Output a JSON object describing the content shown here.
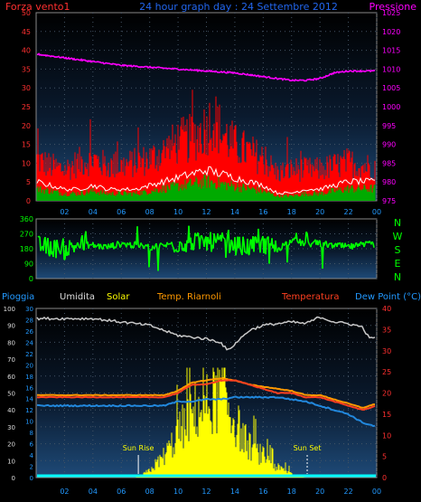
{
  "header": {
    "left": "Forza vento1",
    "center": "24 hour graph day : 24 Settembre 2012",
    "right": "Pressione"
  },
  "colors": {
    "wind_gust": "#ff0000",
    "wind_avg": "#ffffff",
    "wind_green": "#00aa00",
    "pressure": "#ff00ff",
    "direction": "#00ff00",
    "humidity": "#c8c8c8",
    "solar": "#ffff00",
    "temp_indoor": "#ff9900",
    "temperature": "#ff4020",
    "dewpoint": "#2288dd",
    "rain": "#00ffff",
    "left_axis": "#ff3030",
    "bottom_axis": "#2299ff"
  },
  "x_ticks": [
    "02",
    "04",
    "06",
    "08",
    "10",
    "12",
    "14",
    "16",
    "18",
    "20",
    "22",
    "00"
  ],
  "panel1": {
    "left_ticks": [
      "0",
      "5",
      "10",
      "15",
      "20",
      "25",
      "30",
      "35",
      "40",
      "45",
      "50"
    ],
    "right_ticks": [
      "975",
      "980",
      "985",
      "990",
      "995",
      "1000",
      "1005",
      "1010",
      "1015",
      "1020",
      "1025"
    ]
  },
  "panel2": {
    "left_ticks": [
      "0",
      "90",
      "180",
      "270",
      "360"
    ],
    "compass": [
      "N",
      "W",
      "S",
      "E",
      "N"
    ]
  },
  "panel3": {
    "labels": {
      "pioggia": "Pioggia",
      "umidita": "Umidita",
      "solar": "Solar",
      "temp_riarnoli": "Temp. Riarnoli",
      "temperatura": "Temperatura",
      "dewpoint": "Dew Point (°C)"
    },
    "humidity_ticks": [
      "0",
      "10",
      "20",
      "30",
      "40",
      "50",
      "60",
      "70",
      "80",
      "90",
      "100"
    ],
    "rain_ticks": [
      "0",
      "2",
      "4",
      "6",
      "8",
      "10",
      "12",
      "14",
      "16",
      "18",
      "20",
      "22",
      "24",
      "26",
      "28",
      "30"
    ],
    "temp_ticks": [
      "0",
      "5",
      "10",
      "15",
      "20",
      "25",
      "30",
      "35",
      "40"
    ],
    "sun_rise": "Sun Rise",
    "sun_set": "Sun Set"
  },
  "chart_data": [
    {
      "type": "line",
      "title": "24 hour graph day : 24 Settembre 2012",
      "x_range_hours": [
        0,
        24
      ],
      "ylim_left": [
        0,
        50
      ],
      "ylim_right": [
        975,
        1025
      ],
      "series": [
        {
          "name": "Forza vento1",
          "kind": "gust",
          "x": [
            0,
            1,
            2,
            3,
            4,
            5,
            6,
            7,
            8,
            9,
            10,
            11,
            12,
            12.5,
            13,
            14,
            15,
            16,
            17,
            18,
            19,
            20,
            21,
            22,
            23,
            24
          ],
          "values": [
            12,
            10,
            9,
            11,
            12,
            10,
            10,
            11,
            12,
            14,
            17,
            18,
            21,
            24,
            20,
            16,
            14,
            12,
            8,
            9,
            9,
            9,
            10,
            11,
            10,
            10
          ]
        },
        {
          "name": "avg",
          "kind": "average",
          "x": [
            0,
            1,
            2,
            3,
            4,
            5,
            6,
            7,
            8,
            9,
            10,
            11,
            12,
            13,
            14,
            15,
            16,
            17,
            18,
            19,
            20,
            21,
            22,
            23,
            24
          ],
          "values": [
            5,
            4,
            3,
            3,
            4,
            3,
            3,
            3,
            4,
            5,
            6,
            7,
            8,
            7,
            6,
            5,
            4,
            2,
            2,
            3,
            3,
            4,
            5,
            5,
            5
          ]
        },
        {
          "name": "Pressione",
          "axis": "right",
          "x": [
            0,
            2,
            4,
            6,
            8,
            10,
            12,
            14,
            16,
            18,
            19,
            20,
            21,
            22,
            23,
            24
          ],
          "values": [
            1014,
            1013,
            1012,
            1011,
            1010.5,
            1010,
            1009.5,
            1009,
            1008,
            1007,
            1007,
            1007.5,
            1009,
            1009.5,
            1009.5,
            1009.5
          ]
        }
      ]
    },
    {
      "type": "scatter",
      "x_range_hours": [
        0,
        24
      ],
      "ylim": [
        0,
        360
      ],
      "series": [
        {
          "name": "direction",
          "x": [
            0,
            1,
            2,
            3,
            4,
            5,
            6,
            7,
            8,
            9,
            10,
            11,
            12,
            13,
            14,
            15,
            16,
            17,
            18,
            19,
            20,
            21,
            22,
            23,
            24
          ],
          "values": [
            200,
            190,
            170,
            210,
            200,
            190,
            210,
            200,
            190,
            200,
            210,
            220,
            220,
            220,
            200,
            190,
            210,
            180,
            230,
            210,
            210,
            200,
            190,
            200,
            210
          ]
        }
      ]
    },
    {
      "type": "line",
      "x_range_hours": [
        0,
        24
      ],
      "ylim_humidity": [
        0,
        100
      ],
      "ylim_rain": [
        0,
        30
      ],
      "ylim_temp": [
        0,
        40
      ],
      "series": [
        {
          "name": "Umidita",
          "axis": "humidity",
          "x": [
            0,
            2,
            4,
            6,
            8,
            9,
            10,
            11,
            12,
            13,
            13.5,
            14,
            15,
            16,
            17,
            18,
            19,
            20,
            21,
            22,
            23,
            23.5,
            24
          ],
          "values": [
            94,
            94,
            94,
            92,
            90,
            87,
            84,
            83,
            82,
            80,
            75,
            79,
            87,
            90,
            91,
            92,
            91,
            95,
            92,
            91,
            89,
            82,
            84
          ]
        },
        {
          "name": "Temperatura",
          "axis": "temp",
          "x": [
            0,
            2,
            4,
            6,
            8,
            9,
            10,
            11,
            12,
            13,
            14,
            15,
            16,
            17,
            18,
            19,
            20,
            21,
            22,
            23,
            24
          ],
          "values": [
            19,
            19,
            19,
            19,
            19,
            19,
            20,
            22,
            22,
            23,
            23,
            22,
            21,
            20,
            20,
            19,
            19,
            18,
            17,
            16,
            17
          ]
        },
        {
          "name": "Temp. Riarnoli",
          "axis": "temp",
          "x": [
            0,
            2,
            4,
            6,
            8,
            9,
            10,
            11,
            12,
            13,
            14,
            15,
            16,
            17,
            18,
            19,
            20,
            21,
            22,
            23,
            24
          ],
          "values": [
            19.5,
            19.5,
            19.5,
            19.5,
            19.5,
            19.5,
            20.5,
            22.5,
            23,
            23.5,
            23,
            22,
            21.5,
            21,
            20.5,
            19.5,
            19.5,
            18.5,
            17.5,
            16.5,
            17.5
          ]
        },
        {
          "name": "Dew Point (°C)",
          "axis": "temp",
          "x": [
            0,
            2,
            4,
            6,
            8,
            9,
            10,
            11,
            12,
            13,
            14,
            15,
            16,
            17,
            18,
            19,
            20,
            21,
            22,
            23,
            24
          ],
          "values": [
            17,
            17,
            17,
            17,
            17,
            17,
            18,
            18,
            18.5,
            18.5,
            19,
            19,
            19,
            19,
            18.5,
            18,
            17,
            16,
            15,
            13,
            12
          ]
        },
        {
          "name": "Solar",
          "axis": "humidity",
          "x": [
            7,
            7.5,
            8,
            8.5,
            9,
            9.5,
            10,
            10.5,
            11,
            11.5,
            12,
            12.5,
            13,
            13.5,
            14,
            14.5,
            15,
            15.5,
            16,
            16.5,
            17,
            17.5,
            18,
            18.5,
            19
          ],
          "values": [
            0,
            2,
            5,
            10,
            15,
            22,
            30,
            38,
            45,
            48,
            50,
            55,
            58,
            50,
            40,
            30,
            22,
            18,
            15,
            10,
            7,
            5,
            3,
            1,
            0
          ]
        },
        {
          "name": "Pioggia",
          "axis": "rain",
          "x": [
            0,
            24
          ],
          "values": [
            0,
            0
          ]
        }
      ],
      "annotations": [
        {
          "text": "Sun Rise",
          "x_hour": 7.2
        },
        {
          "text": "Sun Set",
          "x_hour": 19.1
        }
      ]
    }
  ]
}
